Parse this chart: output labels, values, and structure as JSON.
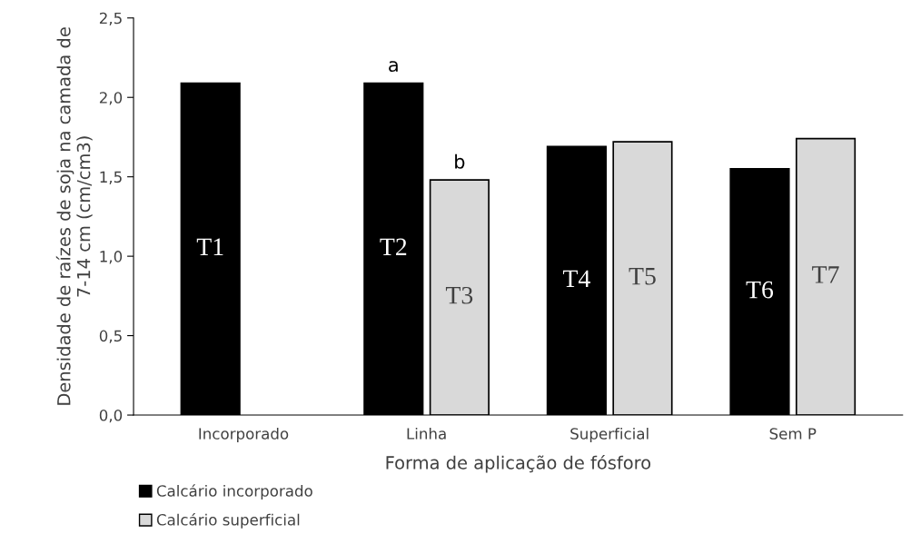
{
  "chart_data": {
    "type": "bar",
    "xlabel": "Forma de aplicação de fósforo",
    "ylabel": "Densidade de raízes de soja na camada de\n7-14 cm (cm/cm3)",
    "categories": [
      "Incorporado",
      "Linha",
      "Superficial",
      "Sem P"
    ],
    "series": [
      {
        "name": "Calcário incorporado",
        "color": "#000000",
        "values": [
          2.09,
          2.09,
          1.69,
          1.55
        ],
        "value_labels": [
          "T1",
          "T2",
          "T4",
          "T6"
        ]
      },
      {
        "name": "Calcário superficial",
        "color": "#d9d9d9",
        "values": [
          null,
          1.48,
          1.72,
          1.74
        ],
        "value_labels": [
          null,
          "T3",
          "T5",
          "T7"
        ]
      }
    ],
    "annotations": [
      {
        "text": "a",
        "x": "Linha",
        "y": 2.09
      },
      {
        "text": "b",
        "x": "Linha",
        "y": 1.48
      }
    ],
    "ylim": [
      0,
      2.5
    ],
    "yticks": [
      {
        "value": 0,
        "label": "0,0"
      },
      {
        "value": 0.5,
        "label": "0,5"
      },
      {
        "value": 1,
        "label": "1,0"
      },
      {
        "value": 1.5,
        "label": "1,5"
      },
      {
        "value": 2,
        "label": "2,0"
      },
      {
        "value": 2.5,
        "label": "2,5"
      }
    ],
    "grid": false,
    "legend": "bottom left"
  }
}
